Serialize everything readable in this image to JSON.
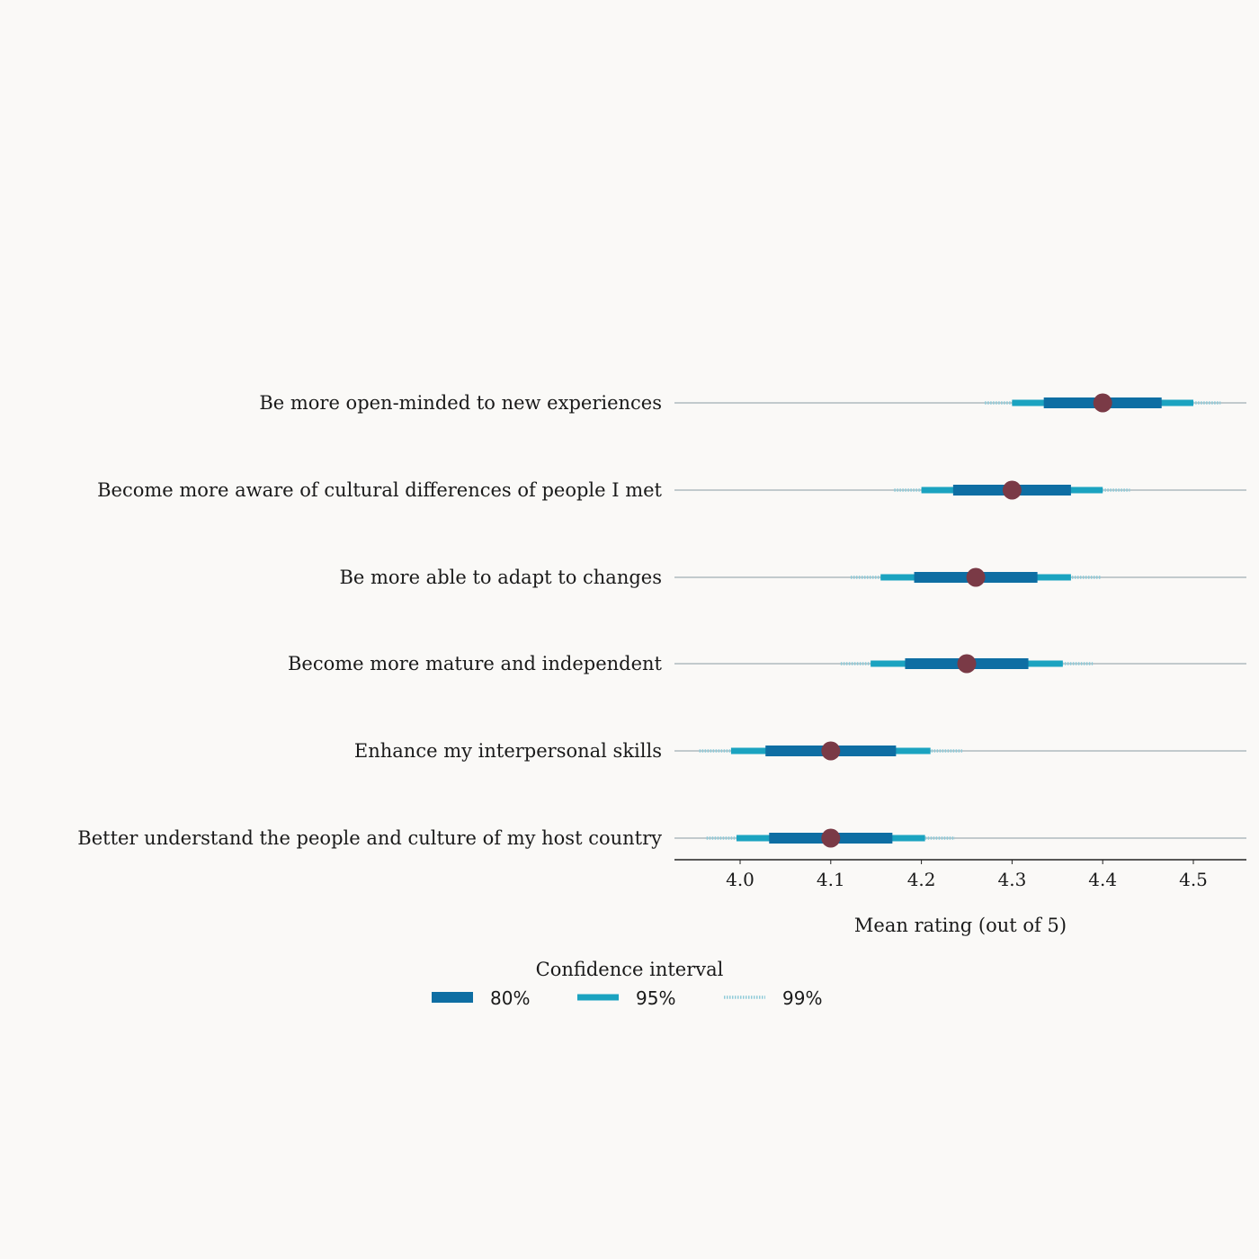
{
  "chart_data": {
    "type": "interval",
    "xlabel": "Mean rating (out of 5)",
    "xlim": [
      3.93,
      4.56
    ],
    "xticks": [
      4.0,
      4.1,
      4.2,
      4.3,
      4.4,
      4.5
    ],
    "xtick_labels": [
      "4.0",
      "4.1",
      "4.2",
      "4.3",
      "4.4",
      "4.5"
    ],
    "grid": false,
    "legend": {
      "title": "Confidence interval",
      "placement": "bottom-center",
      "entries": [
        {
          "label": "80%",
          "level": "80"
        },
        {
          "label": "95%",
          "level": "95"
        },
        {
          "label": "99%",
          "level": "99"
        }
      ]
    },
    "colors": {
      "ci80": "#0e6ea3",
      "ci95": "#1ba3c0",
      "ci99": "#8ecad8",
      "point": "#7a3a46",
      "row_line": "#8a9aa3",
      "axis": "#222222"
    },
    "rows": [
      {
        "label": "Be more open-minded to new experiences",
        "mean": 4.4,
        "ci80": [
          4.335,
          4.465
        ],
        "ci95": [
          4.3,
          4.5
        ],
        "ci99": [
          4.27,
          4.53
        ]
      },
      {
        "label": "Become more aware of cultural differences of people I met",
        "mean": 4.3,
        "ci80": [
          4.235,
          4.365
        ],
        "ci95": [
          4.2,
          4.4
        ],
        "ci99": [
          4.17,
          4.43
        ]
      },
      {
        "label": "Be more able to adapt to changes",
        "mean": 4.26,
        "ci80": [
          4.192,
          4.328
        ],
        "ci95": [
          4.155,
          4.365
        ],
        "ci99": [
          4.122,
          4.398
        ]
      },
      {
        "label": "Become more mature and independent",
        "mean": 4.25,
        "ci80": [
          4.182,
          4.318
        ],
        "ci95": [
          4.144,
          4.356
        ],
        "ci99": [
          4.111,
          4.389
        ]
      },
      {
        "label": "Enhance my interpersonal skills",
        "mean": 4.1,
        "ci80": [
          4.028,
          4.172
        ],
        "ci95": [
          3.99,
          4.21
        ],
        "ci99": [
          3.955,
          4.245
        ]
      },
      {
        "label": "Better understand the people and culture of my host country",
        "mean": 4.1,
        "ci80": [
          4.032,
          4.168
        ],
        "ci95": [
          3.996,
          4.204
        ],
        "ci99": [
          3.963,
          4.237
        ]
      }
    ]
  }
}
